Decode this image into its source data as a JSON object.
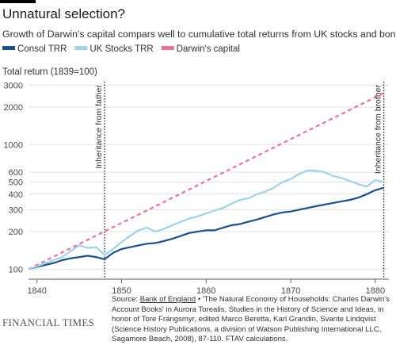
{
  "chart_data": {
    "type": "line",
    "title": "Unnatural selection?",
    "subtitle": "Growth of Darwin's capital compars well to cumulative total returns from UK stocks and bonds",
    "y_label": "Total return (1839=100)",
    "log_y": true,
    "grid": true,
    "x": [
      1839,
      1840,
      1841,
      1842,
      1843,
      1844,
      1845,
      1846,
      1847,
      1848,
      1849,
      1850,
      1851,
      1852,
      1853,
      1854,
      1855,
      1856,
      1857,
      1858,
      1859,
      1860,
      1861,
      1862,
      1863,
      1864,
      1865,
      1866,
      1867,
      1868,
      1869,
      1870,
      1871,
      1872,
      1873,
      1874,
      1875,
      1876,
      1877,
      1878,
      1879,
      1880,
      1881
    ],
    "xlim": [
      1839,
      1881.6
    ],
    "xticks": [
      1840,
      1850,
      1860,
      1870,
      1880
    ],
    "ylim": [
      83,
      3200
    ],
    "yticks": [
      100,
      200,
      300,
      400,
      500,
      600,
      1000,
      2000,
      3000
    ],
    "series": [
      {
        "name": "Consol TRR",
        "color": "#1d4f8b",
        "values": [
          100,
          104,
          108,
          112,
          118,
          122,
          125,
          128,
          125,
          120,
          135,
          145,
          150,
          155,
          160,
          162,
          168,
          175,
          185,
          195,
          200,
          205,
          205,
          215,
          225,
          230,
          240,
          250,
          262,
          275,
          285,
          290,
          300,
          310,
          320,
          330,
          340,
          350,
          360,
          375,
          400,
          430,
          450
        ]
      },
      {
        "name": "UK Stocks TRR",
        "color": "#9ed2ea",
        "values": [
          100,
          105,
          112,
          118,
          125,
          140,
          155,
          148,
          150,
          130,
          145,
          165,
          185,
          205,
          215,
          200,
          210,
          225,
          240,
          255,
          265,
          280,
          295,
          310,
          335,
          360,
          370,
          400,
          420,
          450,
          500,
          530,
          580,
          620,
          615,
          600,
          560,
          540,
          510,
          480,
          460,
          520,
          500
        ]
      },
      {
        "name": "Darwin's capital",
        "color": "#ee7199",
        "dashed": true,
        "x": [
          1839,
          1881
        ],
        "values": [
          100,
          2594
        ]
      }
    ],
    "annotations": [
      {
        "x": 1848,
        "label": "Inheritance from father"
      },
      {
        "x": 1881,
        "label": "Inheritance from brother"
      }
    ],
    "source_label": "Source: ",
    "source_link": "Bank of England",
    "source_text": " • 'The Natural Economy of Households: Charles Darwin's Account Books' in Aurora Torealis, Studies in the History of Science and Ideas, in honor of Tore Frängsmyr, edited Marco Beretta, Karl Grandin, Svante Lindqvist (Science History Publications, a division of Watson Publishing International LLC, Sagamore Beach, 2008), 87-110. FTAV calculations.",
    "brand": "FINANCIAL TIMES"
  }
}
